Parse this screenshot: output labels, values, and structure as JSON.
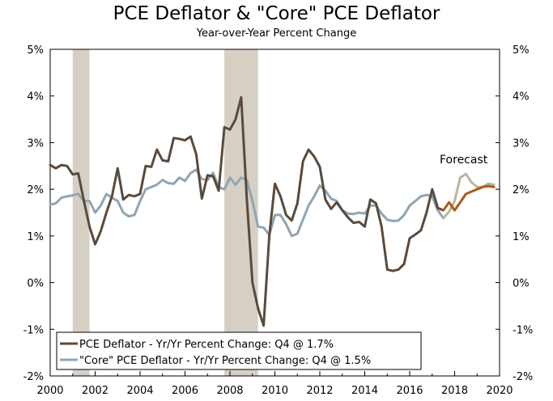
{
  "chart_data": {
    "type": "line",
    "title": "PCE Deflator & \"Core\" PCE Deflator",
    "subtitle": "Year-over-Year Percent Change",
    "xlim": [
      2000,
      2020
    ],
    "ylim": [
      -2,
      5
    ],
    "x_ticks": [
      "2000",
      "2002",
      "2004",
      "2006",
      "2008",
      "2010",
      "2012",
      "2014",
      "2016",
      "2018",
      "2020"
    ],
    "y_ticks_left": [
      "5%",
      "4%",
      "3%",
      "2%",
      "1%",
      "0%",
      "-1%",
      "-2%"
    ],
    "y_ticks_right": [
      "5%",
      "4%",
      "3%",
      "2%",
      "1%",
      "0%",
      "-1%",
      "-2%"
    ],
    "recessions": [
      [
        2001.0,
        2001.75
      ],
      [
        2007.75,
        2009.25
      ]
    ],
    "recession_color": "#d6d0c4",
    "forecast_start": 2017.5,
    "annotation": "Forecast",
    "series": [
      {
        "name": "PCE Deflator - Yr/Yr Percent Change: Q4 @ 1.7%",
        "color": "#5a4a3c",
        "forecast_color": "#b05a16",
        "x": [
          2000.0,
          2000.25,
          2000.5,
          2000.75,
          2001.0,
          2001.25,
          2001.5,
          2001.75,
          2002.0,
          2002.25,
          2002.5,
          2002.75,
          2003.0,
          2003.25,
          2003.5,
          2003.75,
          2004.0,
          2004.25,
          2004.5,
          2004.75,
          2005.0,
          2005.25,
          2005.5,
          2005.75,
          2006.0,
          2006.25,
          2006.5,
          2006.75,
          2007.0,
          2007.25,
          2007.5,
          2007.75,
          2008.0,
          2008.25,
          2008.5,
          2008.75,
          2009.0,
          2009.25,
          2009.5,
          2009.75,
          2010.0,
          2010.25,
          2010.5,
          2010.75,
          2011.0,
          2011.25,
          2011.5,
          2011.75,
          2012.0,
          2012.25,
          2012.5,
          2012.75,
          2013.0,
          2013.25,
          2013.5,
          2013.75,
          2014.0,
          2014.25,
          2014.5,
          2014.75,
          2015.0,
          2015.25,
          2015.5,
          2015.75,
          2016.0,
          2016.25,
          2016.5,
          2016.75,
          2017.0,
          2017.25,
          2017.5,
          2017.75,
          2018.0,
          2018.25,
          2018.5,
          2018.75,
          2019.0,
          2019.25,
          2019.5,
          2019.75
        ],
        "values": [
          2.52,
          2.45,
          2.52,
          2.5,
          2.32,
          2.34,
          1.75,
          1.2,
          0.82,
          1.1,
          1.5,
          1.85,
          2.45,
          1.78,
          1.88,
          1.85,
          1.9,
          2.5,
          2.48,
          2.85,
          2.62,
          2.6,
          3.1,
          3.08,
          3.05,
          3.13,
          2.75,
          1.8,
          2.3,
          2.28,
          1.97,
          3.33,
          3.28,
          3.5,
          3.97,
          1.8,
          0.0,
          -0.55,
          -0.92,
          1.0,
          2.12,
          1.85,
          1.45,
          1.33,
          1.7,
          2.6,
          2.85,
          2.7,
          2.48,
          1.78,
          1.58,
          1.72,
          1.55,
          1.4,
          1.28,
          1.3,
          1.2,
          1.78,
          1.7,
          1.2,
          0.28,
          0.25,
          0.28,
          0.4,
          0.95,
          1.03,
          1.12,
          1.5,
          2.0,
          1.6,
          1.55,
          1.72,
          1.55,
          1.72,
          1.9,
          1.95,
          2.0,
          2.05,
          2.07,
          2.05
        ]
      },
      {
        "name": "\"Core\" PCE Deflator - Yr/Yr Percent Change: Q4 @ 1.5%",
        "color": "#8fa5b2",
        "forecast_color": "#b9b79e",
        "x": [
          2000.0,
          2000.25,
          2000.5,
          2000.75,
          2001.0,
          2001.25,
          2001.5,
          2001.75,
          2002.0,
          2002.25,
          2002.5,
          2002.75,
          2003.0,
          2003.25,
          2003.5,
          2003.75,
          2004.0,
          2004.25,
          2004.5,
          2004.75,
          2005.0,
          2005.25,
          2005.5,
          2005.75,
          2006.0,
          2006.25,
          2006.5,
          2006.75,
          2007.0,
          2007.25,
          2007.5,
          2007.75,
          2008.0,
          2008.25,
          2008.5,
          2008.75,
          2009.0,
          2009.25,
          2009.5,
          2009.75,
          2010.0,
          2010.25,
          2010.5,
          2010.75,
          2011.0,
          2011.25,
          2011.5,
          2011.75,
          2012.0,
          2012.25,
          2012.5,
          2012.75,
          2013.0,
          2013.25,
          2013.5,
          2013.75,
          2014.0,
          2014.25,
          2014.5,
          2014.75,
          2015.0,
          2015.25,
          2015.5,
          2015.75,
          2016.0,
          2016.25,
          2016.5,
          2016.75,
          2017.0,
          2017.25,
          2017.5,
          2017.75,
          2018.0,
          2018.25,
          2018.5,
          2018.75,
          2019.0,
          2019.25,
          2019.5,
          2019.75
        ],
        "values": [
          1.67,
          1.7,
          1.82,
          1.85,
          1.87,
          1.9,
          1.75,
          1.75,
          1.5,
          1.65,
          1.9,
          1.82,
          1.75,
          1.5,
          1.42,
          1.45,
          1.75,
          2.0,
          2.05,
          2.1,
          2.2,
          2.13,
          2.12,
          2.25,
          2.18,
          2.35,
          2.42,
          2.22,
          2.2,
          2.35,
          2.05,
          2.0,
          2.25,
          2.1,
          2.25,
          2.2,
          1.75,
          1.2,
          1.18,
          1.02,
          1.45,
          1.45,
          1.25,
          1.0,
          1.05,
          1.35,
          1.65,
          1.85,
          2.08,
          1.97,
          1.8,
          1.75,
          1.55,
          1.48,
          1.47,
          1.5,
          1.48,
          1.65,
          1.65,
          1.48,
          1.35,
          1.32,
          1.33,
          1.45,
          1.65,
          1.75,
          1.85,
          1.88,
          1.85,
          1.55,
          1.38,
          1.52,
          1.75,
          2.25,
          2.33,
          2.15,
          2.05,
          2.05,
          2.12,
          2.1
        ]
      }
    ],
    "legend": {
      "position": "bottom-left",
      "entries": [
        "PCE Deflator - Yr/Yr Percent Change: Q4 @ 1.7%",
        "\"Core\" PCE Deflator - Yr/Yr Percent Change: Q4 @ 1.5%"
      ]
    }
  }
}
